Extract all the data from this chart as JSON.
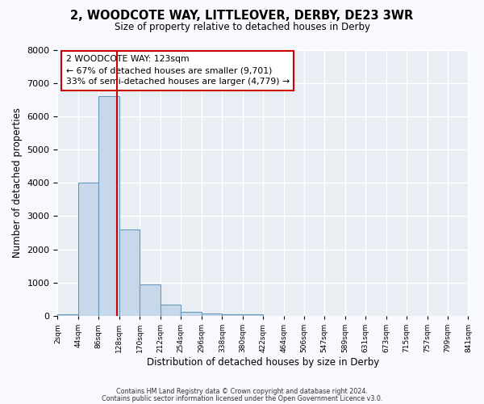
{
  "title": "2, WOODCOTE WAY, LITTLEOVER, DERBY, DE23 3WR",
  "subtitle": "Size of property relative to detached houses in Derby",
  "xlabel": "Distribution of detached houses by size in Derby",
  "ylabel": "Number of detached properties",
  "bar_color": "#c8d8eb",
  "bar_edge_color": "#6699bb",
  "property_size": 123,
  "red_line_color": "#cc0000",
  "annotation_line1": "2 WOODCOTE WAY: 123sqm",
  "annotation_line2": "← 67% of detached houses are smaller (9,701)",
  "annotation_line3": "33% of semi-detached houses are larger (4,779) →",
  "bin_edges": [
    2,
    44,
    86,
    128,
    170,
    212,
    254,
    296,
    338,
    380,
    422,
    464,
    506,
    547,
    589,
    631,
    673,
    715,
    757,
    799,
    841
  ],
  "bar_heights": [
    50,
    4000,
    6600,
    2600,
    950,
    330,
    120,
    80,
    60,
    50,
    0,
    0,
    0,
    0,
    0,
    0,
    0,
    0,
    0,
    0
  ],
  "ylim": [
    0,
    8000
  ],
  "yticks": [
    0,
    1000,
    2000,
    3000,
    4000,
    5000,
    6000,
    7000,
    8000
  ],
  "fig_background": "#f7f9fc",
  "plot_background": "#e8eef4",
  "grid_color": "#ffffff",
  "footer_text1": "Contains HM Land Registry data © Crown copyright and database right 2024.",
  "footer_text2": "Contains public sector information licensed under the Open Government Licence v3.0.",
  "annotation_box_color": "#ffffff",
  "annotation_border_color": "#cc0000"
}
